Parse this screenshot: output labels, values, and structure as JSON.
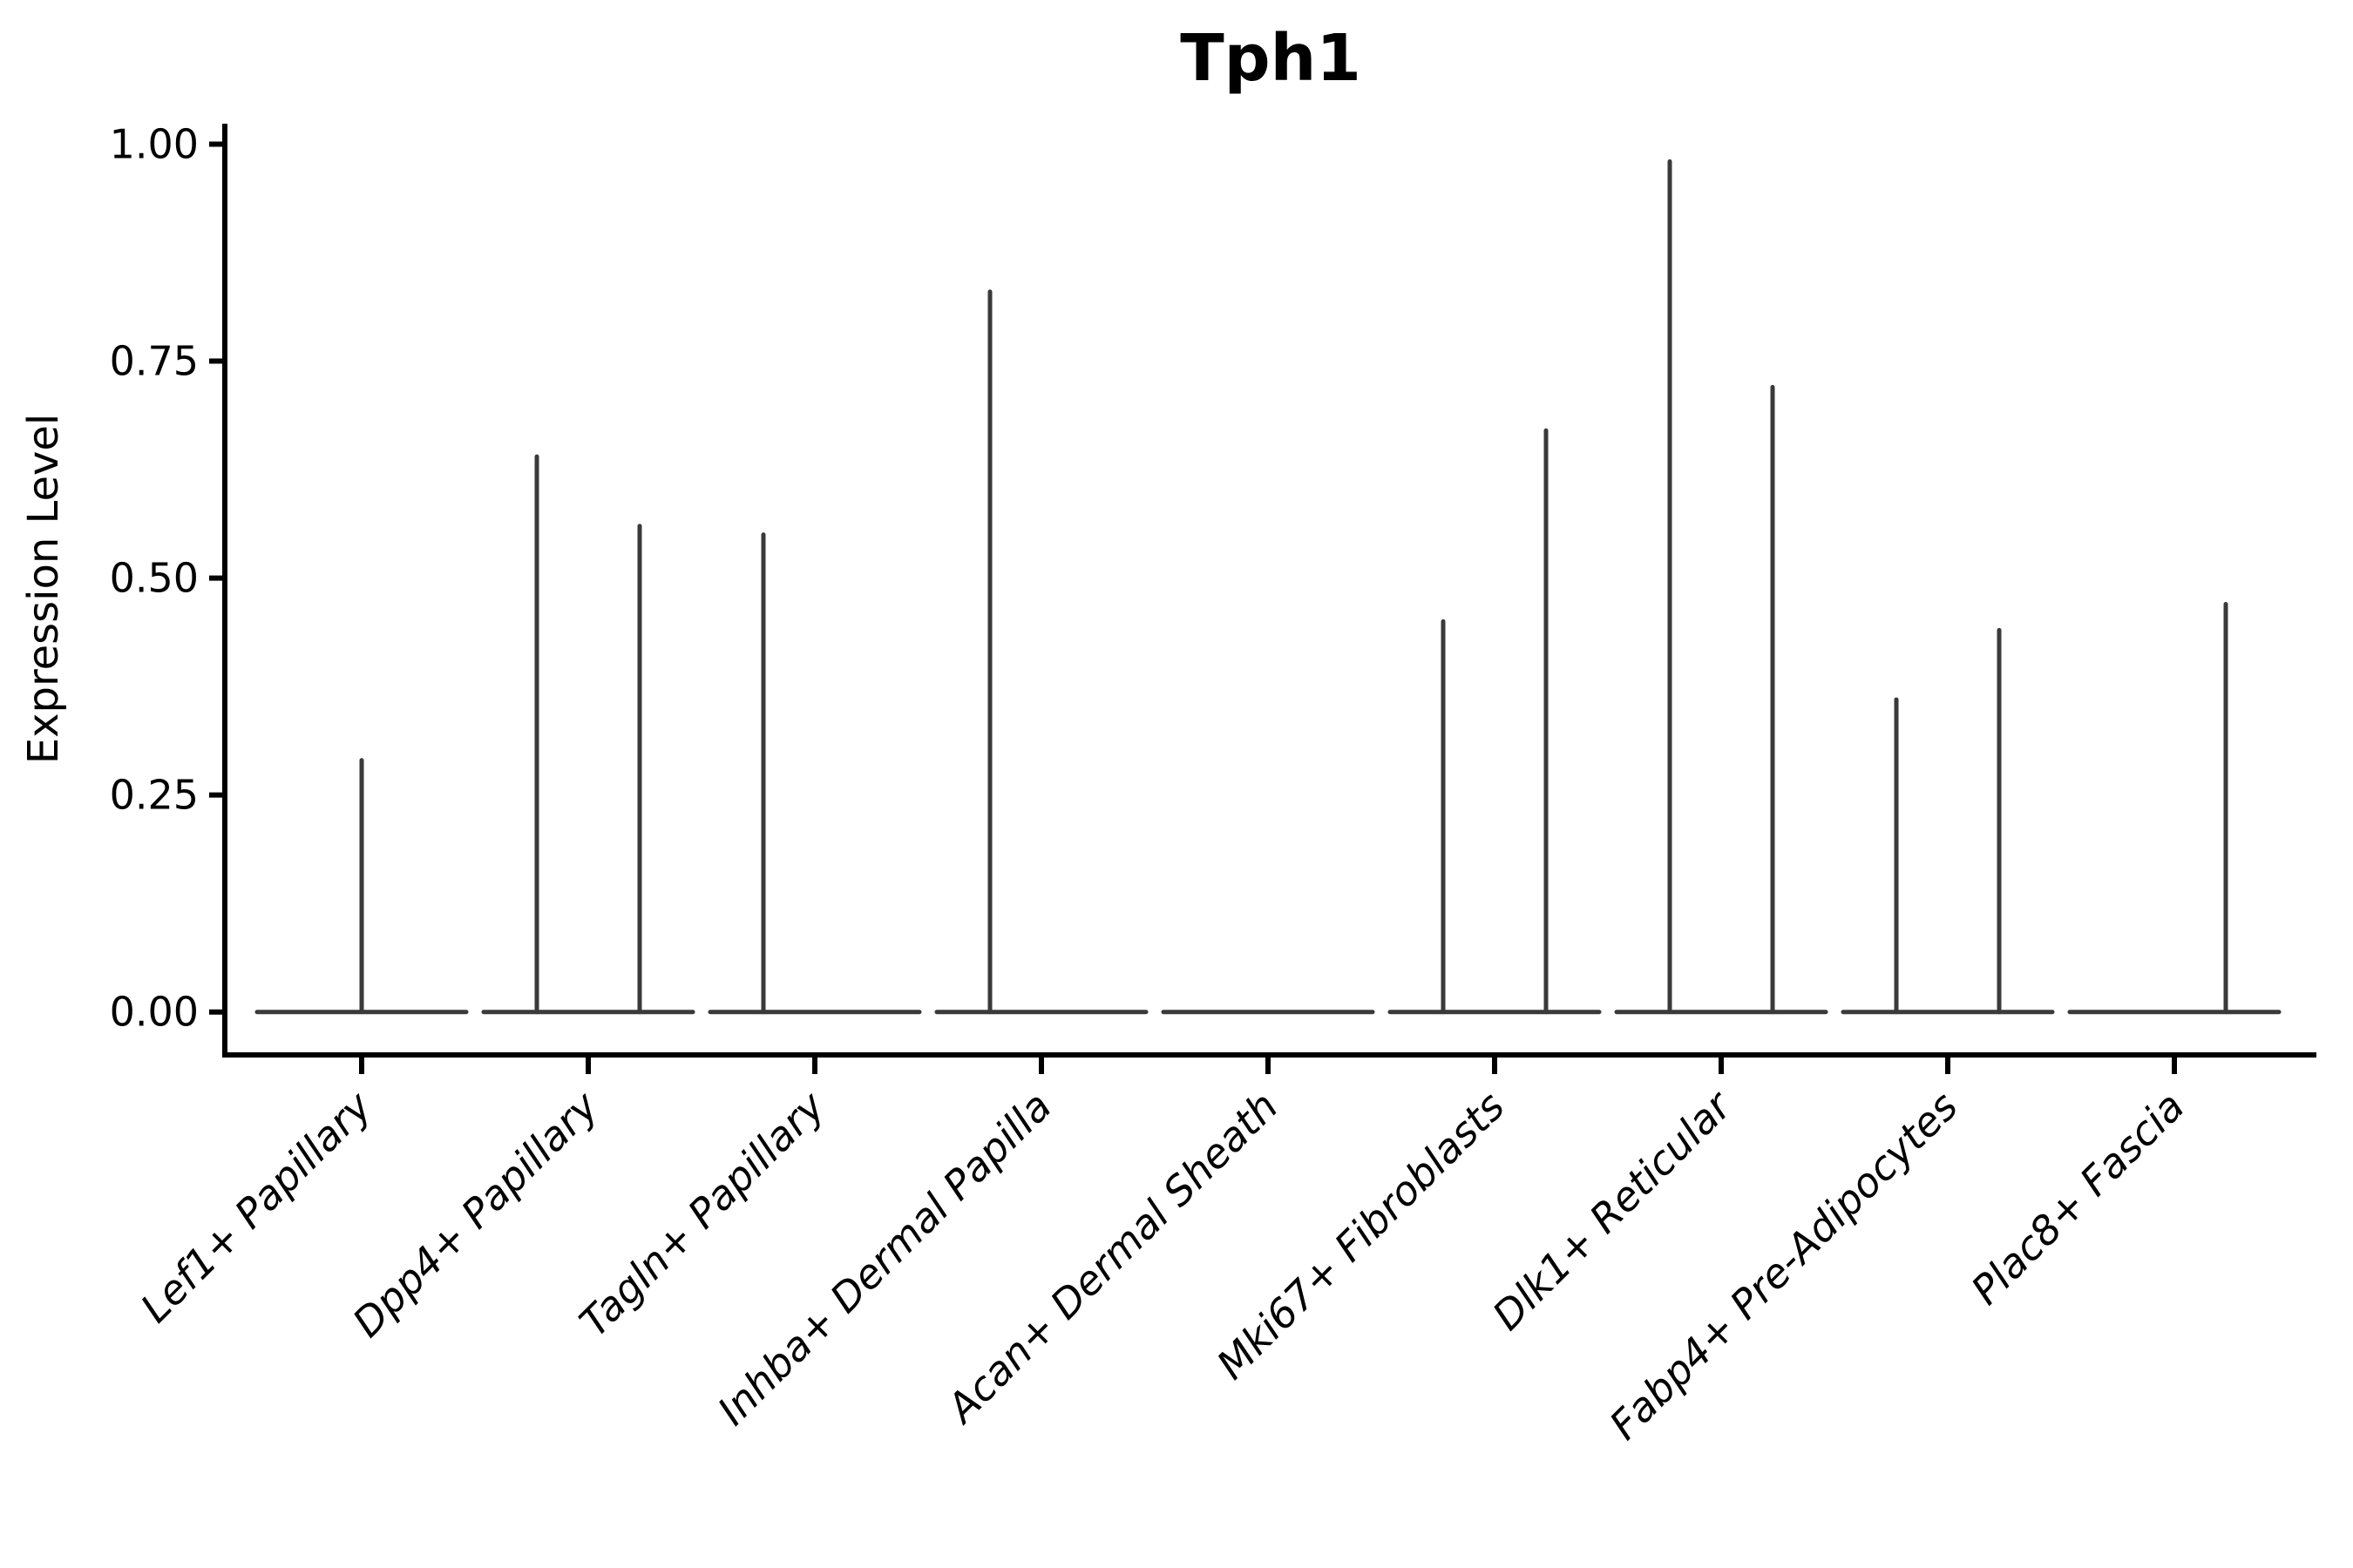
{
  "page": {
    "background": "#ffffff"
  },
  "chart_data": {
    "type": "violin",
    "title": "Tph1",
    "ylabel": "Expression Level",
    "xlabel": "",
    "ylim": [
      0,
      1.05
    ],
    "ytick_labels": [
      "0.00",
      "0.25",
      "0.50",
      "0.75",
      "1.00"
    ],
    "ytick_values": [
      0,
      0.25,
      0.5,
      0.75,
      1.0
    ],
    "grid": false,
    "legend_position": "none",
    "categories": [
      "Lef1+ Papillary",
      "Dpp4+ Papillary",
      "Tagln+ Papillary",
      "Inhba+ Dermal Papilla",
      "Acan+ Dermal Sheath",
      "Mki67+ Fibroblasts",
      "Dlk1+ Reticular",
      "Fabp4+ Pre-Adipocytes",
      "Plac8+ Fascia"
    ],
    "violins": [
      {
        "category": "Lef1+ Papillary",
        "baseline_value": 0,
        "spikes": [
          {
            "side": "center",
            "value": 0.29
          }
        ]
      },
      {
        "category": "Dpp4+ Papillary",
        "baseline_value": 0,
        "spikes": [
          {
            "side": "left",
            "value": 0.64
          },
          {
            "side": "right",
            "value": 0.56
          }
        ]
      },
      {
        "category": "Tagln+ Papillary",
        "baseline_value": 0,
        "spikes": [
          {
            "side": "left",
            "value": 0.55
          }
        ]
      },
      {
        "category": "Inhba+ Dermal Papilla",
        "baseline_value": 0,
        "spikes": [
          {
            "side": "left",
            "value": 0.83
          }
        ]
      },
      {
        "category": "Acan+ Dermal Sheath",
        "baseline_value": 0,
        "spikes": []
      },
      {
        "category": "Mki67+ Fibroblasts",
        "baseline_value": 0,
        "spikes": [
          {
            "side": "left",
            "value": 0.45
          },
          {
            "side": "right",
            "value": 0.67
          }
        ]
      },
      {
        "category": "Dlk1+ Reticular",
        "baseline_value": 0,
        "spikes": [
          {
            "side": "left",
            "value": 0.98
          },
          {
            "side": "right",
            "value": 0.72
          }
        ]
      },
      {
        "category": "Fabp4+ Pre-Adipocytes",
        "baseline_value": 0,
        "spikes": [
          {
            "side": "left",
            "value": 0.36
          },
          {
            "side": "right",
            "value": 0.44
          }
        ]
      },
      {
        "category": "Plac8+ Fascia",
        "baseline_value": 0,
        "spikes": [
          {
            "side": "right",
            "value": 0.47
          }
        ]
      }
    ],
    "colors": {
      "violin_outline": "#3a3a3a",
      "axis": "#000000",
      "text": "#000000",
      "background": "#ffffff"
    }
  }
}
